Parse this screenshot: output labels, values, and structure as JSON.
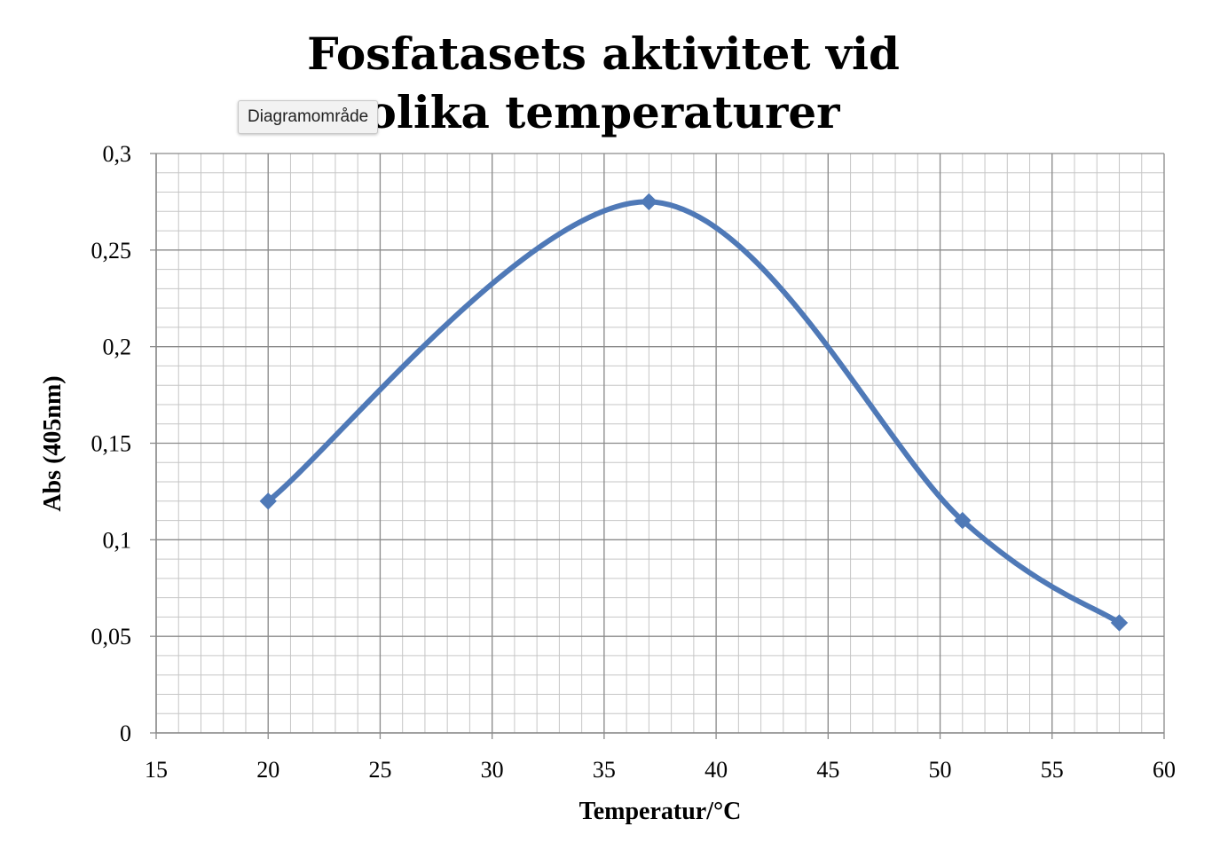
{
  "tooltip": {
    "label": "Diagramområde"
  },
  "chart_data": {
    "type": "scatter",
    "title": "Fosfatasets aktivitet vid olika temperaturer",
    "xlabel": "Temperatur/°C",
    "ylabel": "Abs (405nm)",
    "xlim": [
      15,
      60
    ],
    "ylim": [
      0,
      0.3
    ],
    "x_ticks": [
      "15",
      "20",
      "25",
      "30",
      "35",
      "40",
      "45",
      "50",
      "55",
      "60"
    ],
    "y_ticks": [
      "0",
      "0,05",
      "0,1",
      "0,15",
      "0,2",
      "0,25",
      "0,3"
    ],
    "grid": true,
    "smooth_lines": true,
    "legend": "none",
    "series": [
      {
        "color": "#4f79b7",
        "marker": "diamond",
        "points": [
          {
            "x": 20,
            "y": 0.12
          },
          {
            "x": 37,
            "y": 0.275
          },
          {
            "x": 51,
            "y": 0.11
          },
          {
            "x": 58,
            "y": 0.057
          }
        ]
      }
    ]
  }
}
